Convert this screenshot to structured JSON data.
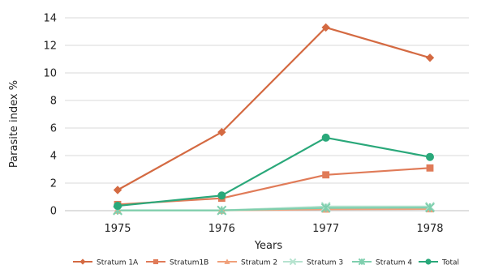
{
  "chart_data": {
    "type": "line",
    "title": "",
    "xlabel": "Years",
    "ylabel": "Parasite index %",
    "categories": [
      "1975",
      "1976",
      "1977",
      "1978"
    ],
    "ylim": [
      0,
      14
    ],
    "yticks": [
      0,
      2,
      4,
      6,
      8,
      10,
      12,
      14
    ],
    "grid": true,
    "legend_position": "bottom",
    "series": [
      {
        "name": "Stratum 1A",
        "values": [
          1.5,
          5.7,
          13.3,
          11.1
        ],
        "color": "#d46a42",
        "marker": "diamond"
      },
      {
        "name": "Stratum1B",
        "values": [
          0.45,
          0.9,
          2.6,
          3.1
        ],
        "color": "#e07b58",
        "marker": "square"
      },
      {
        "name": "Stratum 2",
        "values": [
          0.02,
          0.02,
          0.1,
          0.12
        ],
        "color": "#f0a07a",
        "marker": "triangle"
      },
      {
        "name": "Stratum 3",
        "values": [
          0.02,
          0.02,
          0.3,
          0.3
        ],
        "color": "#b6e3cf",
        "marker": "cross"
      },
      {
        "name": "Stratum 4",
        "values": [
          0.02,
          0.02,
          0.2,
          0.22
        ],
        "color": "#7fcfae",
        "marker": "asterisk"
      },
      {
        "name": "Total",
        "values": [
          0.35,
          1.1,
          5.3,
          3.9
        ],
        "color": "#2aa87a",
        "marker": "circle"
      }
    ]
  }
}
